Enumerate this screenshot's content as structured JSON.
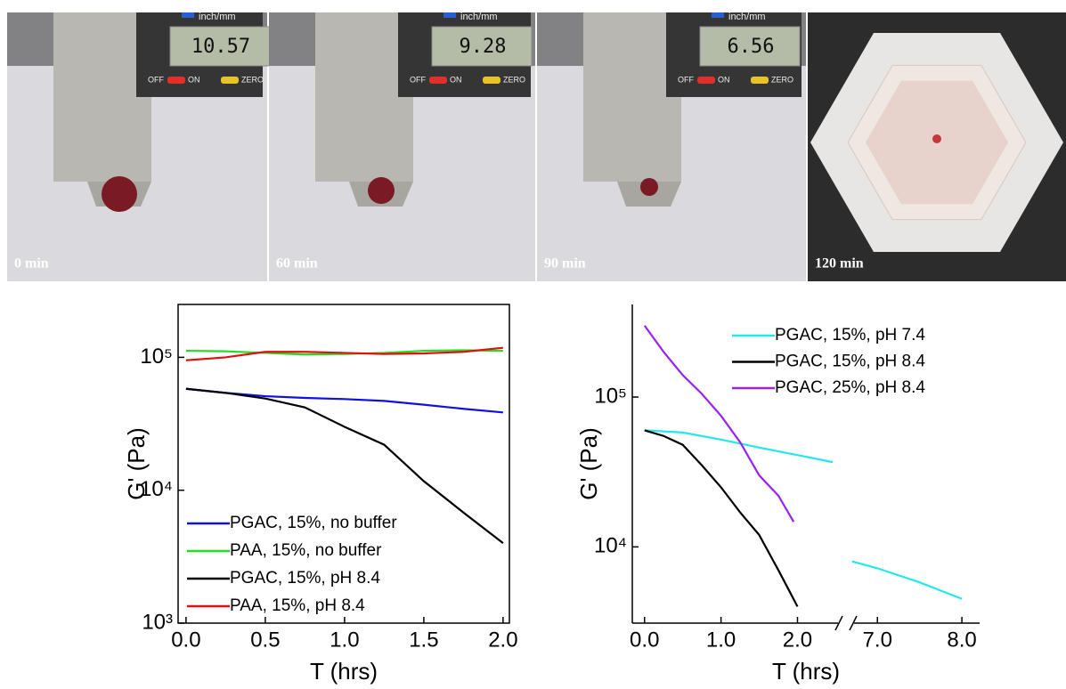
{
  "photos": [
    {
      "label": "0 min",
      "readout": "10.57"
    },
    {
      "label": "60 min",
      "readout": "9.28"
    },
    {
      "label": "90 min",
      "readout": "6.56"
    },
    {
      "label": "120 min"
    }
  ],
  "caliper_text": {
    "unit": "inch/mm",
    "off": "OFF",
    "on": "ON",
    "zero": "ZERO"
  },
  "chart_data": [
    {
      "type": "line",
      "x_label": "T (hrs)",
      "y_label": "G' (Pa)",
      "log_y": true,
      "legend": "lower left",
      "xlim": [
        -0.05,
        2.04
      ],
      "xticks": [
        {
          "value": 0,
          "label": "0.0"
        },
        {
          "value": 0.5,
          "label": "0.5"
        },
        {
          "value": 1,
          "label": "1.0"
        },
        {
          "value": 1.5,
          "label": "1.5"
        },
        {
          "value": 2,
          "label": "2.0"
        }
      ],
      "ylim": [
        1000,
        250000
      ],
      "yticks": [
        {
          "value": 1000,
          "label": "10³"
        },
        {
          "value": 10000,
          "label": "10⁴"
        },
        {
          "value": 100000,
          "label": "10⁵"
        }
      ],
      "x": [
        0,
        0.25,
        0.5,
        0.75,
        1,
        1.25,
        1.5,
        1.75,
        2
      ],
      "series": [
        {
          "name": "PGAC, 15%, no buffer",
          "color": "#1010e0",
          "values": [
            58000,
            54000,
            51000,
            49500,
            48500,
            47000,
            44000,
            41000,
            38500
          ]
        },
        {
          "name": "PAA, 15%, no buffer",
          "color": "#22dd22",
          "values": [
            112000,
            111000,
            108000,
            105000,
            106000,
            108000,
            112000,
            113000,
            112000
          ]
        },
        {
          "name": "PGAC, 15%, pH 8.4",
          "color": "#000000",
          "values": [
            58000,
            54000,
            49000,
            42000,
            30000,
            22000,
            11700,
            6800,
            4000
          ]
        },
        {
          "name": "PAA, 15%, pH 8.4",
          "color": "#e01010",
          "values": [
            95000,
            100000,
            110000,
            110000,
            108000,
            106000,
            107000,
            110000,
            118000
          ]
        }
      ]
    },
    {
      "type": "line",
      "x_label": "T (hrs)",
      "y_label": "G' (Pa)",
      "log_y": true,
      "legend": "upper right",
      "x_segments": [
        {
          "xlim": [
            -0.16,
            2.6
          ],
          "xticks": [
            {
              "value": 0,
              "label": "0.0"
            },
            {
              "value": 1,
              "label": "1.0"
            },
            {
              "value": 2,
              "label": "2.0"
            }
          ]
        },
        {
          "xlim": [
            6.66,
            8.21
          ],
          "xticks": [
            {
              "value": 7,
              "label": "7.0"
            },
            {
              "value": 8,
              "label": "8.0"
            }
          ]
        }
      ],
      "ylim": [
        3100,
        415000
      ],
      "yticks": [
        {
          "value": 10000,
          "label": "10⁴"
        },
        {
          "value": 100000,
          "label": "10⁵"
        }
      ],
      "series": [
        {
          "name": "PGAC, 15%, pH 7.4",
          "color": "#22e8ee",
          "x": [
            0,
            0.5,
            1,
            1.5,
            2,
            2.46,
            6.7,
            7,
            7.5,
            8
          ],
          "values": [
            60000,
            58000,
            52000,
            46000,
            41000,
            36800,
            8000,
            7200,
            5800,
            4500
          ]
        },
        {
          "name": "PGAC, 15%, pH 8.4",
          "color": "#000000",
          "x": [
            0,
            0.25,
            0.5,
            0.75,
            1,
            1.25,
            1.5,
            1.75,
            2
          ],
          "values": [
            60000,
            55000,
            48000,
            35000,
            25000,
            17000,
            12000,
            7000,
            4000
          ]
        },
        {
          "name": "PGAC, 25%, pH 8.4",
          "color": "#9922ee",
          "x": [
            0,
            0.25,
            0.5,
            0.75,
            1,
            1.25,
            1.5,
            1.75,
            1.95
          ],
          "values": [
            300000,
            200000,
            140000,
            105000,
            75000,
            50000,
            30000,
            22000,
            14700
          ]
        }
      ]
    }
  ]
}
